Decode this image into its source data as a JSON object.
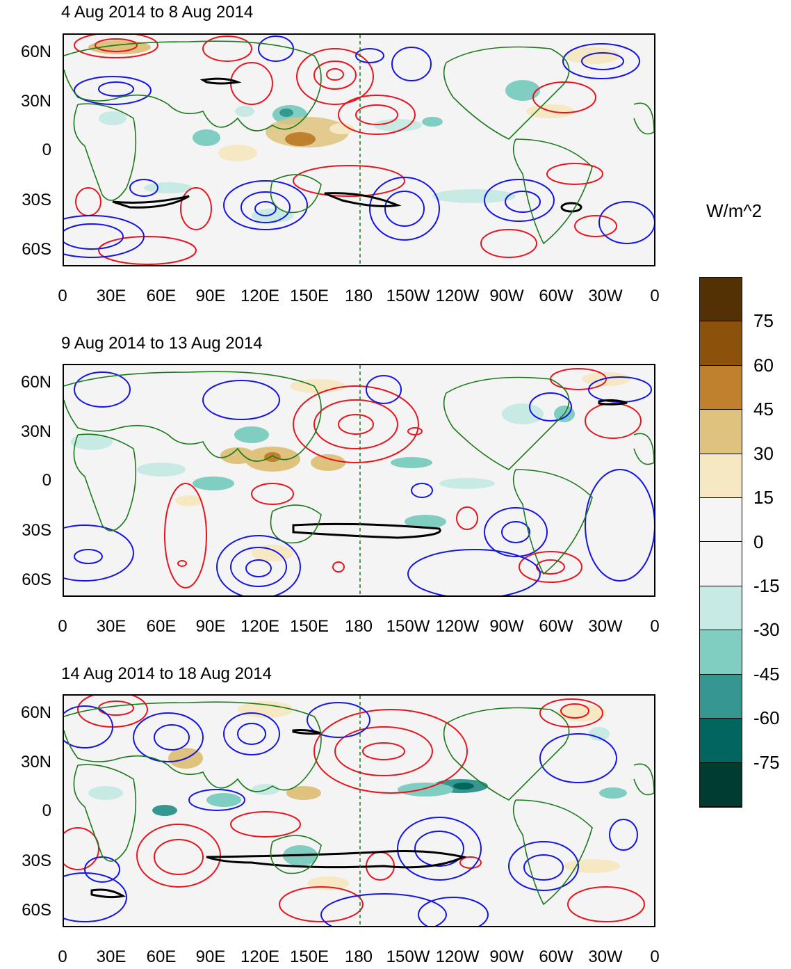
{
  "colorbar": {
    "title": "W/m^2",
    "labels": [
      "75",
      "60",
      "45",
      "30",
      "15",
      "0",
      "-15",
      "-30",
      "-45",
      "-60",
      "-75"
    ],
    "colors": [
      "#543005",
      "#8c510a",
      "#bf812d",
      "#dfc27d",
      "#f6e8c3",
      "#f5f5f5",
      "#f5f5f5",
      "#c7eae5",
      "#80cdc1",
      "#35978f",
      "#01665e",
      "#003c30"
    ]
  },
  "lat_labels": [
    "60N",
    "30N",
    "0",
    "30S",
    "60S"
  ],
  "lon_labels": [
    "0",
    "30E",
    "60E",
    "90E",
    "120E",
    "150E",
    "180",
    "150W",
    "120W",
    "90W",
    "60W",
    "30W",
    "0"
  ],
  "panels": [
    {
      "title": "4 Aug 2014 to 8 Aug 2014"
    },
    {
      "title": "9 Aug 2014 to 13 Aug 2014"
    },
    {
      "title": "14 Aug 2014 to 18 Aug 2014"
    }
  ],
  "legend_colors": {
    "positive_contour": "#e8141e",
    "negative_contour": "#1414e6",
    "zero_contour": "#000000",
    "coastline": "#1a7a1a",
    "dateline": "#1a7a1a"
  }
}
